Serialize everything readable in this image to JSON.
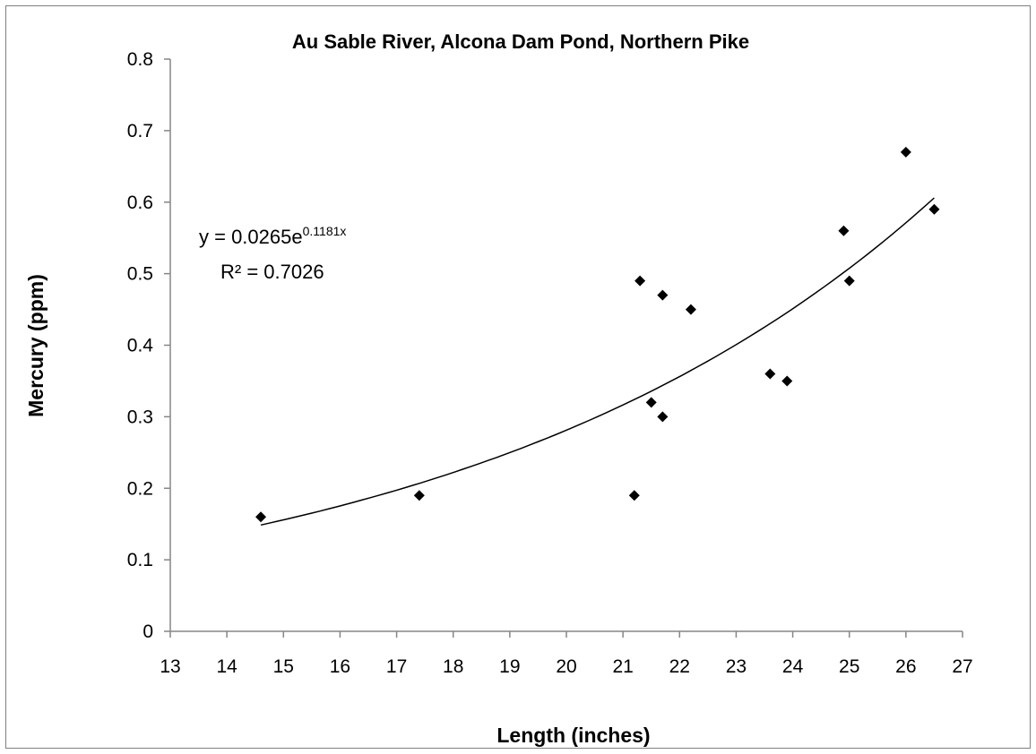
{
  "chart_data": {
    "type": "scatter",
    "title": "Au Sable River, Alcona Dam Pond, Northern Pike",
    "xlabel": "Length (inches)",
    "ylabel": "Mercury (ppm)",
    "xlim": [
      13,
      27
    ],
    "ylim": [
      0,
      0.8
    ],
    "xticks": [
      13,
      14,
      15,
      16,
      17,
      18,
      19,
      20,
      21,
      22,
      23,
      24,
      25,
      26,
      27
    ],
    "yticks": [
      "0",
      "0.1",
      "0.2",
      "0.3",
      "0.4",
      "0.5",
      "0.6",
      "0.7",
      "0.8"
    ],
    "grid": false,
    "legend": "none",
    "marker": "diamond",
    "marker_color": "#000000",
    "series": [
      {
        "x": [
          14.6,
          17.4,
          21.2,
          21.3,
          21.5,
          21.7,
          21.7,
          22.2,
          23.6,
          23.9,
          24.9,
          25.0,
          26.0,
          26.5
        ],
        "y": [
          0.16,
          0.19,
          0.19,
          0.49,
          0.32,
          0.47,
          0.3,
          0.45,
          0.36,
          0.35,
          0.56,
          0.49,
          0.67,
          0.59
        ]
      }
    ],
    "trendline": {
      "type": "exponential",
      "a": 0.0265,
      "b": 0.1181,
      "x_range": [
        14.6,
        26.5
      ],
      "equation_main": "y = 0.0265e",
      "equation_exp": "0.1181x",
      "r_squared_label": "R² = 0.7026"
    }
  }
}
